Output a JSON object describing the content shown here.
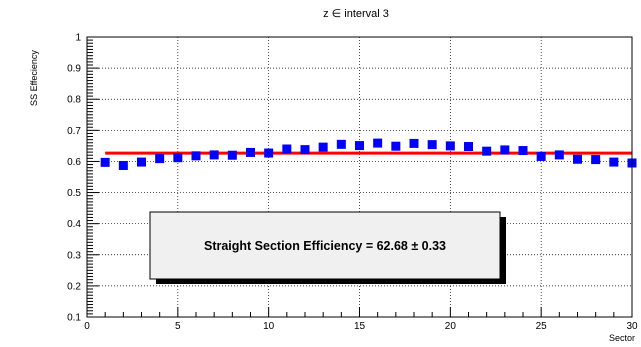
{
  "chart_data": {
    "type": "scatter",
    "title": "z ∈ interval 3",
    "xlabel": "Sector",
    "ylabel": "SS Effeciency",
    "xlim": [
      0,
      30
    ],
    "ylim": [
      0.1,
      1.0
    ],
    "x_ticks": [
      {
        "v": 0,
        "label": "0"
      },
      {
        "v": 5,
        "label": "5"
      },
      {
        "v": 10,
        "label": "10"
      },
      {
        "v": 15,
        "label": "15"
      },
      {
        "v": 20,
        "label": "20"
      },
      {
        "v": 25,
        "label": "25"
      },
      {
        "v": 30,
        "label": "30"
      }
    ],
    "y_ticks": [
      {
        "v": 0.1,
        "label": "0.1"
      },
      {
        "v": 0.2,
        "label": "0.2"
      },
      {
        "v": 0.3,
        "label": "0.3"
      },
      {
        "v": 0.4,
        "label": "0.4"
      },
      {
        "v": 0.5,
        "label": "0.5"
      },
      {
        "v": 0.6,
        "label": "0.6"
      },
      {
        "v": 0.7,
        "label": "0.7"
      },
      {
        "v": 0.8,
        "label": "0.8"
      },
      {
        "v": 0.9,
        "label": "0.9"
      },
      {
        "v": 1.0,
        "label": "1"
      }
    ],
    "grid": true,
    "series": [
      {
        "marker": "square",
        "color": "#0000ff",
        "x": [
          1,
          2,
          3,
          4,
          5,
          6,
          7,
          8,
          9,
          10,
          11,
          12,
          13,
          14,
          15,
          16,
          17,
          18,
          19,
          20,
          21,
          22,
          23,
          24,
          25,
          26,
          27,
          28,
          29,
          30
        ],
        "y": [
          0.597,
          0.587,
          0.598,
          0.609,
          0.612,
          0.618,
          0.621,
          0.62,
          0.629,
          0.627,
          0.64,
          0.638,
          0.646,
          0.655,
          0.651,
          0.659,
          0.649,
          0.658,
          0.654,
          0.65,
          0.648,
          0.633,
          0.637,
          0.635,
          0.616,
          0.621,
          0.607,
          0.606,
          0.598,
          0.595
        ]
      }
    ],
    "fit_line": {
      "y": 0.6268,
      "color": "#ff0000"
    },
    "stats_box": {
      "text": "Straight Section Efficiency = 62.68 ± 0.33",
      "value": 62.68,
      "error": 0.33
    }
  }
}
